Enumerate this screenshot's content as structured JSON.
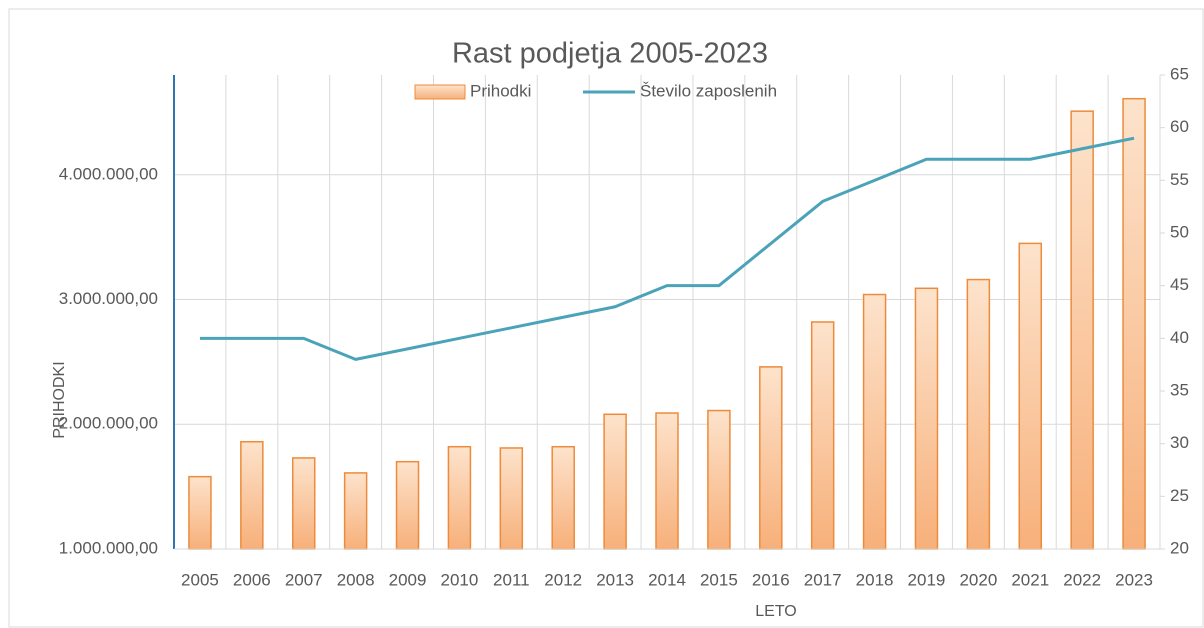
{
  "chart_data": {
    "type": "bar_line",
    "title": "Rast podjetja 2005-2023",
    "x_label": "LETO",
    "y_label": "PRIHODKI",
    "categories": [
      "2005",
      "2006",
      "2007",
      "2008",
      "2009",
      "2010",
      "2011",
      "2012",
      "2013",
      "2014",
      "2015",
      "2016",
      "2017",
      "2018",
      "2019",
      "2020",
      "2021",
      "2022",
      "2023"
    ],
    "series": [
      {
        "name": "Prihodki",
        "type": "bar",
        "color": "#f4a460",
        "axis": "y",
        "values": [
          1580000,
          1860000,
          1730000,
          1610000,
          1700000,
          1820000,
          1810000,
          1820000,
          2080000,
          2090000,
          2110000,
          2460000,
          2820000,
          3040000,
          3090000,
          3160000,
          3450000,
          4510000,
          4610000
        ]
      },
      {
        "name": "Število zaposlenih",
        "type": "line",
        "color": "#4aa3b8",
        "axis": "y2",
        "values": [
          40,
          40,
          40,
          38,
          39,
          40,
          41,
          42,
          43,
          45,
          45,
          49,
          53,
          55,
          57,
          57,
          57,
          58,
          59
        ]
      }
    ],
    "ylim": [
      1000000,
      4800000
    ],
    "yticks": [
      {
        "value": 1000000,
        "label": "1.000.000,00"
      },
      {
        "value": 2000000,
        "label": "2.000.000,00"
      },
      {
        "value": 3000000,
        "label": "3.000.000,00"
      },
      {
        "value": 4000000,
        "label": "4.000.000,00"
      }
    ],
    "y2lim": [
      20,
      65
    ],
    "y2ticks": [
      20,
      25,
      30,
      35,
      40,
      45,
      50,
      55,
      60,
      65
    ],
    "grid": true,
    "legend": "top"
  }
}
